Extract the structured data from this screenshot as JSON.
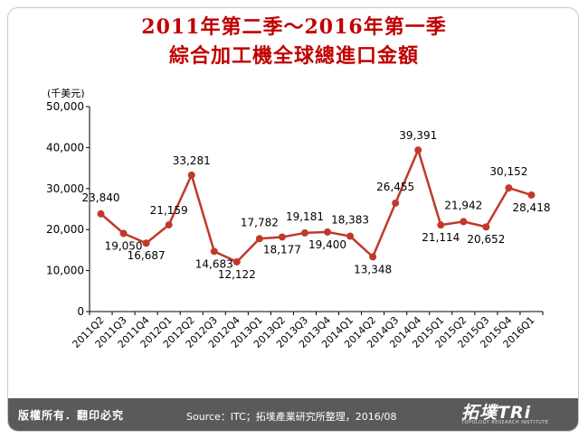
{
  "title_line1": "2011年第二季～2016年第一季",
  "title_line2": "綜合加工機全球總進口金額",
  "chart_data": {
    "type": "line",
    "title": "2011年第二季～2016年第一季 綜合加工機全球總進口金額",
    "xlabel": "",
    "ylabel": "(千美元)",
    "ylim": [
      0,
      50000
    ],
    "yticks": [
      0,
      10000,
      20000,
      30000,
      40000,
      50000
    ],
    "ytick_labels": [
      "0",
      "10,000",
      "20,000",
      "30,000",
      "40,000",
      "50,000"
    ],
    "grid": false,
    "legend": "none",
    "line_color": "#c0392b",
    "categories": [
      "2011Q2",
      "2011Q3",
      "2011Q4",
      "2012Q1",
      "2012Q2",
      "2012Q3",
      "2012Q4",
      "2013Q1",
      "2013Q2",
      "2013Q3",
      "2013Q4",
      "2014Q1",
      "2014Q2",
      "2014Q3",
      "2014Q4",
      "2015Q1",
      "2015Q2",
      "2015Q3",
      "2015Q4",
      "2016Q1"
    ],
    "values": [
      23840,
      19050,
      16687,
      21159,
      33281,
      14683,
      12122,
      17782,
      18177,
      19181,
      19400,
      18383,
      13348,
      26455,
      39391,
      21114,
      21942,
      20652,
      30152,
      28418
    ],
    "value_labels": [
      "23,840",
      "19,050",
      "16,687",
      "21,159",
      "33,281",
      "14,683",
      "12,122",
      "17,782",
      "18,177",
      "19,181",
      "19,400",
      "18,383",
      "13,348",
      "26,455",
      "39,391",
      "21,114",
      "21,942",
      "20,652",
      "30,152",
      "28,418"
    ]
  },
  "footer": {
    "rights": "版權所有．翻印必究",
    "source": "Source：ITC；拓墣產業研究所整理，2016/08",
    "logo_main": "拓墣",
    "logo_tri": "TRi",
    "logo_sub": "TOPOLOGY RESEARCH INSTITUTE"
  }
}
